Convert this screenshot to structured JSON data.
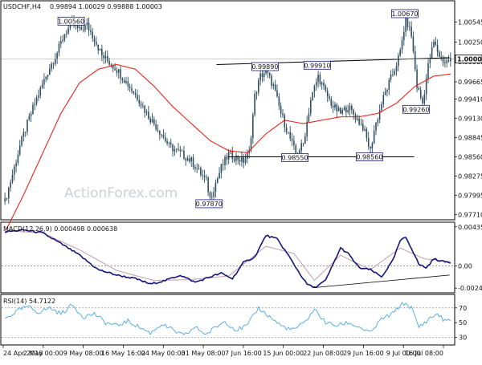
{
  "header": {
    "symbol_tf": "USDCHF,H4",
    "ohlc": "0.99894 1.00029 0.99888 1.00003"
  },
  "watermark": "ActionForex.com",
  "colors": {
    "candles": "#2f4f5f",
    "ma": "#e8231c",
    "macd_line": "#14147a",
    "macd_signal": "#c59bb0",
    "rsi": "#4aa8e8",
    "annotation_box": "#1a1a8c",
    "trendline": "#000000"
  },
  "chart_data": [
    {
      "type": "candlestick",
      "panel": "price",
      "title": "USDCHF,H4",
      "ylim": [
        0.9768,
        1.008
      ],
      "y_ticks": [
        "1.00545",
        "1.00250",
        "0.99960",
        "0.99665",
        "0.99410",
        "0.99130",
        "0.98845",
        "0.98560",
        "0.98275",
        "0.97995",
        "0.97710"
      ],
      "current_price": "1.00003",
      "x_ticks": [
        "24 Apr 2018",
        "2 May 00:00",
        "9 May 08:00",
        "16 May 16:00",
        "24 May 00:00",
        "31 May 08:00",
        "7 Jun 16:00",
        "15 Jun 00:00",
        "22 Jun 08:00",
        "29 Jun 16:00",
        "9 Jul 00:00",
        "16 Jul 08:00"
      ],
      "close_path": [
        [
          0,
          0.979
        ],
        [
          4,
          0.983
        ],
        [
          8,
          0.9872
        ],
        [
          12,
          0.9905
        ],
        [
          16,
          0.9935
        ],
        [
          20,
          0.9962
        ],
        [
          24,
          0.9988
        ],
        [
          28,
          1.001
        ],
        [
          32,
          1.0038
        ],
        [
          36,
          1.0052
        ],
        [
          40,
          1.0042
        ],
        [
          44,
          1.005
        ],
        [
          48,
          1.003
        ],
        [
          52,
          1.0005
        ],
        [
          56,
          0.9995
        ],
        [
          60,
          0.9985
        ],
        [
          64,
          0.997
        ],
        [
          68,
          0.9955
        ],
        [
          72,
          0.994
        ],
        [
          76,
          0.992
        ],
        [
          80,
          0.9905
        ],
        [
          84,
          0.989
        ],
        [
          88,
          0.9872
        ],
        [
          92,
          0.9865
        ],
        [
          96,
          0.9858
        ],
        [
          100,
          0.985
        ],
        [
          104,
          0.9835
        ],
        [
          108,
          0.982
        ],
        [
          110,
          0.9795
        ],
        [
          112,
          0.981
        ],
        [
          116,
          0.984
        ],
        [
          120,
          0.986
        ],
        [
          124,
          0.9855
        ],
        [
          128,
          0.985
        ],
        [
          131,
          0.9862
        ],
        [
          134,
          0.9945
        ],
        [
          137,
          0.9975
        ],
        [
          140,
          0.9982
        ],
        [
          144,
          0.996
        ],
        [
          148,
          0.992
        ],
        [
          152,
          0.989
        ],
        [
          156,
          0.986
        ],
        [
          160,
          0.9875
        ],
        [
          164,
          0.994
        ],
        [
          168,
          0.9975
        ],
        [
          172,
          0.995
        ],
        [
          176,
          0.993
        ],
        [
          180,
          0.992
        ],
        [
          184,
          0.993
        ],
        [
          188,
          0.9915
        ],
        [
          192,
          0.99
        ],
        [
          196,
          0.9865
        ],
        [
          198,
          0.9895
        ],
        [
          202,
          0.9935
        ],
        [
          206,
          0.9965
        ],
        [
          209,
          0.9985
        ],
        [
          212,
          1.001
        ],
        [
          215,
          1.006
        ],
        [
          218,
          1.0035
        ],
        [
          221,
          0.996
        ],
        [
          224,
          0.9935
        ],
        [
          227,
          0.999
        ],
        [
          230,
          1.0025
        ],
        [
          233,
          1.0005
        ],
        [
          236,
          0.9995
        ],
        [
          239,
          1.0
        ]
      ],
      "ma_path": [
        [
          0,
          0.9745
        ],
        [
          10,
          0.98
        ],
        [
          20,
          0.986
        ],
        [
          30,
          0.992
        ],
        [
          40,
          0.9965
        ],
        [
          50,
          0.9985
        ],
        [
          60,
          0.9992
        ],
        [
          70,
          0.9985
        ],
        [
          80,
          0.996
        ],
        [
          90,
          0.993
        ],
        [
          100,
          0.9905
        ],
        [
          110,
          0.988
        ],
        [
          120,
          0.9865
        ],
        [
          130,
          0.9862
        ],
        [
          140,
          0.989
        ],
        [
          150,
          0.991
        ],
        [
          160,
          0.9905
        ],
        [
          170,
          0.991
        ],
        [
          180,
          0.9915
        ],
        [
          190,
          0.9915
        ],
        [
          200,
          0.992
        ],
        [
          210,
          0.9935
        ],
        [
          220,
          0.996
        ],
        [
          230,
          0.9975
        ],
        [
          239,
          0.9978
        ]
      ],
      "annotations": [
        {
          "label": "1.00560",
          "bar": 36,
          "price": 1.0056
        },
        {
          "label": "0.97870",
          "bar": 110,
          "price": 0.9787
        },
        {
          "label": "0.99890",
          "bar": 140,
          "price": 0.9989
        },
        {
          "label": "0.99910",
          "bar": 168,
          "price": 0.9991
        },
        {
          "label": "0.98550",
          "bar": 156,
          "price": 0.9855
        },
        {
          "label": "0.98560",
          "bar": 196,
          "price": 0.9856
        },
        {
          "label": "0.99260",
          "bar": 221,
          "price": 0.9926
        },
        {
          "label": "1.00670",
          "bar": 215,
          "price": 1.0067
        }
      ],
      "trendlines": [
        {
          "from": [
            114,
            0.9992
          ],
          "to": [
            239,
            1.0002
          ]
        },
        {
          "from": [
            120,
            0.9856
          ],
          "to": [
            220,
            0.9856
          ]
        }
      ]
    },
    {
      "type": "line",
      "panel": "macd",
      "title": "MACD(12,26,9) 0.000498 0.000638",
      "ylim": [
        -0.0027,
        0.0046
      ],
      "y_ticks": [
        "0.004351",
        "0.00",
        "-0.002448"
      ],
      "macd_path": [
        [
          0,
          0.0038
        ],
        [
          10,
          0.004
        ],
        [
          20,
          0.0037
        ],
        [
          30,
          0.0025
        ],
        [
          40,
          0.0012
        ],
        [
          50,
          -0.0004
        ],
        [
          60,
          -0.001
        ],
        [
          70,
          -0.0014
        ],
        [
          78,
          -0.002
        ],
        [
          86,
          -0.0016
        ],
        [
          94,
          -0.001
        ],
        [
          102,
          -0.0018
        ],
        [
          110,
          -0.0012
        ],
        [
          116,
          -0.0008
        ],
        [
          122,
          -0.0014
        ],
        [
          128,
          0.0004
        ],
        [
          134,
          0.001
        ],
        [
          140,
          0.0034
        ],
        [
          146,
          0.003
        ],
        [
          152,
          0.0012
        ],
        [
          158,
          -0.0008
        ],
        [
          162,
          -0.002
        ],
        [
          166,
          -0.0024
        ],
        [
          172,
          -0.0016
        ],
        [
          176,
          0.0002
        ],
        [
          180,
          0.002
        ],
        [
          184,
          0.0014
        ],
        [
          190,
          -0.0002
        ],
        [
          196,
          -0.0004
        ],
        [
          202,
          -0.0012
        ],
        [
          208,
          0.0006
        ],
        [
          212,
          0.0028
        ],
        [
          215,
          0.0032
        ],
        [
          218,
          0.002
        ],
        [
          222,
          0.0002
        ],
        [
          226,
          -0.0002
        ],
        [
          230,
          0.0008
        ],
        [
          235,
          0.0005
        ],
        [
          239,
          0.0004
        ]
      ],
      "signal_path": [
        [
          0,
          0.0039
        ],
        [
          20,
          0.0037
        ],
        [
          40,
          0.0018
        ],
        [
          60,
          -0.0005
        ],
        [
          80,
          -0.0016
        ],
        [
          100,
          -0.0015
        ],
        [
          120,
          -0.0011
        ],
        [
          140,
          0.0022
        ],
        [
          155,
          0.0014
        ],
        [
          166,
          -0.0016
        ],
        [
          180,
          0.0012
        ],
        [
          196,
          -0.0004
        ],
        [
          212,
          0.002
        ],
        [
          225,
          0.0008
        ],
        [
          239,
          0.0005
        ]
      ],
      "trendline": {
        "from": [
          166,
          -0.0024
        ],
        "to": [
          239,
          -0.001
        ]
      }
    },
    {
      "type": "line",
      "panel": "rsi",
      "title": "RSI(14) 54.7122",
      "ylim": [
        22,
        85
      ],
      "y_ticks": [
        "70",
        "50",
        "30"
      ],
      "rsi_path": [
        [
          0,
          55
        ],
        [
          6,
          65
        ],
        [
          12,
          72
        ],
        [
          18,
          64
        ],
        [
          24,
          70
        ],
        [
          30,
          62
        ],
        [
          36,
          74
        ],
        [
          42,
          58
        ],
        [
          48,
          62
        ],
        [
          54,
          50
        ],
        [
          60,
          46
        ],
        [
          66,
          52
        ],
        [
          72,
          44
        ],
        [
          78,
          36
        ],
        [
          84,
          48
        ],
        [
          90,
          40
        ],
        [
          96,
          32
        ],
        [
          102,
          44
        ],
        [
          108,
          34
        ],
        [
          112,
          42
        ],
        [
          118,
          52
        ],
        [
          124,
          40
        ],
        [
          130,
          46
        ],
        [
          136,
          70
        ],
        [
          142,
          58
        ],
        [
          148,
          46
        ],
        [
          154,
          40
        ],
        [
          160,
          48
        ],
        [
          166,
          68
        ],
        [
          172,
          50
        ],
        [
          178,
          46
        ],
        [
          184,
          50
        ],
        [
          190,
          44
        ],
        [
          196,
          36
        ],
        [
          202,
          55
        ],
        [
          208,
          62
        ],
        [
          212,
          74
        ],
        [
          215,
          76
        ],
        [
          218,
          70
        ],
        [
          222,
          44
        ],
        [
          228,
          56
        ],
        [
          232,
          62
        ],
        [
          236,
          52
        ],
        [
          239,
          55
        ]
      ]
    }
  ]
}
